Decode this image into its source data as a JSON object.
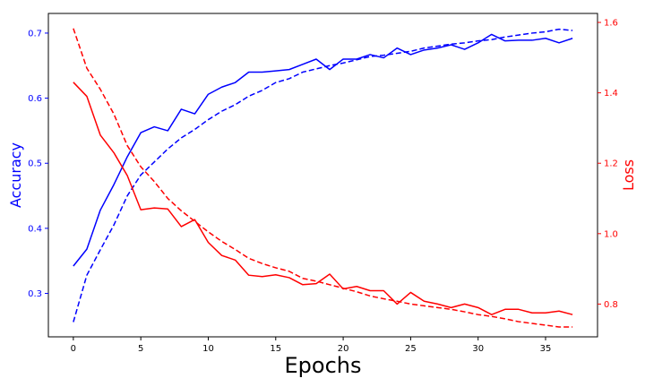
{
  "chart_data": {
    "type": "line",
    "xlabel": "Epochs",
    "ylabel_left": "Accuracy",
    "ylabel_right": "Loss",
    "colors": {
      "left": "#0000ff",
      "right": "#ff0000",
      "axis": "#000000"
    },
    "xlim": [
      -1.85,
      38.85
    ],
    "ylim_left": [
      0.2333,
      0.7302
    ],
    "ylim_right": [
      0.7069,
      1.6255
    ],
    "x_ticks": [
      0,
      5,
      10,
      15,
      20,
      25,
      30,
      35
    ],
    "y_left_ticks": [
      0.3,
      0.4,
      0.5,
      0.6,
      0.7
    ],
    "y_right_ticks": [
      0.8,
      1.0,
      1.2,
      1.4,
      1.6
    ],
    "x": [
      0,
      1,
      2,
      3,
      4,
      5,
      6,
      7,
      8,
      9,
      10,
      11,
      12,
      13,
      14,
      15,
      16,
      17,
      18,
      19,
      20,
      21,
      22,
      23,
      24,
      25,
      26,
      27,
      28,
      29,
      30,
      31,
      32,
      33,
      34,
      35,
      36,
      37
    ],
    "series": [
      {
        "axis": "left",
        "style": "solid",
        "color": "#0000ff",
        "values": [
          0.342,
          0.368,
          0.428,
          0.467,
          0.51,
          0.547,
          0.556,
          0.55,
          0.583,
          0.576,
          0.606,
          0.617,
          0.624,
          0.64,
          0.64,
          0.642,
          0.644,
          0.652,
          0.66,
          0.644,
          0.66,
          0.66,
          0.667,
          0.662,
          0.677,
          0.667,
          0.674,
          0.677,
          0.682,
          0.675,
          0.685,
          0.698,
          0.688,
          0.689,
          0.689,
          0.692,
          0.685,
          0.692
        ]
      },
      {
        "axis": "left",
        "style": "dashed",
        "color": "#0000ff",
        "values": [
          0.256,
          0.328,
          0.367,
          0.405,
          0.45,
          0.482,
          0.502,
          0.522,
          0.539,
          0.552,
          0.567,
          0.58,
          0.59,
          0.603,
          0.612,
          0.624,
          0.63,
          0.64,
          0.645,
          0.65,
          0.654,
          0.659,
          0.664,
          0.666,
          0.669,
          0.672,
          0.677,
          0.68,
          0.683,
          0.685,
          0.688,
          0.69,
          0.694,
          0.697,
          0.7,
          0.702,
          0.706,
          0.704
        ]
      },
      {
        "axis": "right",
        "style": "solid",
        "color": "#ff0000",
        "values": [
          1.43,
          1.39,
          1.28,
          1.23,
          1.165,
          1.068,
          1.073,
          1.07,
          1.02,
          1.04,
          0.975,
          0.938,
          0.925,
          0.882,
          0.878,
          0.883,
          0.875,
          0.855,
          0.858,
          0.885,
          0.843,
          0.85,
          0.838,
          0.838,
          0.8,
          0.833,
          0.808,
          0.8,
          0.79,
          0.8,
          0.79,
          0.77,
          0.785,
          0.785,
          0.775,
          0.775,
          0.78,
          0.77
        ]
      },
      {
        "axis": "right",
        "style": "dashed",
        "color": "#ff0000",
        "values": [
          1.583,
          1.47,
          1.41,
          1.34,
          1.25,
          1.19,
          1.148,
          1.1,
          1.065,
          1.035,
          1.005,
          0.978,
          0.955,
          0.93,
          0.915,
          0.903,
          0.893,
          0.873,
          0.865,
          0.855,
          0.845,
          0.835,
          0.823,
          0.815,
          0.808,
          0.8,
          0.795,
          0.79,
          0.785,
          0.778,
          0.77,
          0.765,
          0.758,
          0.75,
          0.745,
          0.74,
          0.735,
          0.735
        ]
      }
    ]
  }
}
